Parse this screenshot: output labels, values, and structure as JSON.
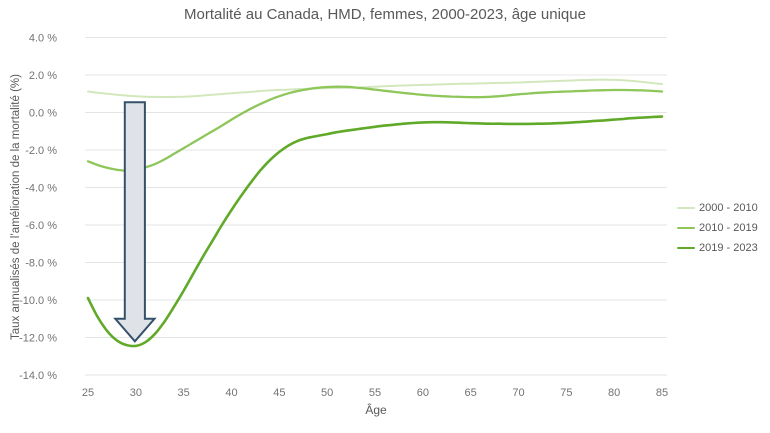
{
  "chart_data": {
    "type": "line",
    "title": "Mortalité au Canada, HMD, femmes, 2000-2023, âge unique",
    "xlabel": "Âge",
    "ylabel": "Taux annualisés de l’amélioration de la mortalité (%)",
    "grid": "horizontal",
    "grid_color": "#e4e4e4",
    "tick_color": "#737373",
    "legend_position": "right",
    "x_axis": {
      "min": 25,
      "max": 85,
      "ticks": [
        25,
        30,
        35,
        40,
        45,
        50,
        55,
        60,
        65,
        70,
        75,
        80,
        85
      ],
      "tick_labels": [
        "25",
        "30",
        "35",
        "40",
        "45",
        "50",
        "55",
        "60",
        "65",
        "70",
        "75",
        "80",
        "85"
      ]
    },
    "y_axis": {
      "min": -14,
      "max": 4,
      "ticks": [
        {
          "value": 4,
          "label": "4.0 %"
        },
        {
          "value": 2,
          "label": "2.0 %"
        },
        {
          "value": 0,
          "label": "0.0 %"
        },
        {
          "value": -2,
          "label": "-2.0 %"
        },
        {
          "value": -4,
          "label": "-4.0 %"
        },
        {
          "value": -6,
          "label": "-6.0 %"
        },
        {
          "value": -8,
          "label": "-8.0 %"
        },
        {
          "value": -10,
          "label": "-10.0 %"
        },
        {
          "value": -12,
          "label": "-12.0 %"
        },
        {
          "value": -14,
          "label": "-14.0 %"
        }
      ]
    },
    "series": [
      {
        "name": "2000 - 2010",
        "color": "#d2e7bc",
        "width": 2,
        "points": [
          [
            25,
            1.12
          ],
          [
            26,
            1.05
          ],
          [
            28,
            0.95
          ],
          [
            30,
            0.87
          ],
          [
            32,
            0.83
          ],
          [
            34,
            0.83
          ],
          [
            36,
            0.87
          ],
          [
            38,
            0.95
          ],
          [
            40,
            1.03
          ],
          [
            42,
            1.1
          ],
          [
            44,
            1.18
          ],
          [
            46,
            1.22
          ],
          [
            48,
            1.27
          ],
          [
            50,
            1.3
          ],
          [
            52,
            1.32
          ],
          [
            54,
            1.35
          ],
          [
            56,
            1.4
          ],
          [
            58,
            1.44
          ],
          [
            60,
            1.47
          ],
          [
            62,
            1.5
          ],
          [
            64,
            1.53
          ],
          [
            66,
            1.55
          ],
          [
            68,
            1.58
          ],
          [
            70,
            1.6
          ],
          [
            72,
            1.64
          ],
          [
            74,
            1.68
          ],
          [
            76,
            1.72
          ],
          [
            78,
            1.75
          ],
          [
            80,
            1.74
          ],
          [
            82,
            1.68
          ],
          [
            84,
            1.57
          ],
          [
            85,
            1.52
          ]
        ]
      },
      {
        "name": "2010 - 2019",
        "color": "#8ec65a",
        "width": 2.3,
        "points": [
          [
            25,
            -2.6
          ],
          [
            26,
            -2.8
          ],
          [
            27,
            -2.95
          ],
          [
            28,
            -3.05
          ],
          [
            29,
            -3.1
          ],
          [
            30,
            -3.05
          ],
          [
            31,
            -2.93
          ],
          [
            32,
            -2.75
          ],
          [
            33,
            -2.5
          ],
          [
            34,
            -2.2
          ],
          [
            35,
            -1.9
          ],
          [
            36,
            -1.6
          ],
          [
            37,
            -1.3
          ],
          [
            38,
            -1.0
          ],
          [
            39,
            -0.7
          ],
          [
            40,
            -0.38
          ],
          [
            41,
            -0.08
          ],
          [
            42,
            0.2
          ],
          [
            43,
            0.45
          ],
          [
            44,
            0.68
          ],
          [
            45,
            0.87
          ],
          [
            46,
            1.03
          ],
          [
            47,
            1.15
          ],
          [
            48,
            1.25
          ],
          [
            49,
            1.32
          ],
          [
            50,
            1.36
          ],
          [
            51,
            1.38
          ],
          [
            52,
            1.37
          ],
          [
            53,
            1.33
          ],
          [
            54,
            1.28
          ],
          [
            55,
            1.22
          ],
          [
            56,
            1.16
          ],
          [
            57,
            1.1
          ],
          [
            58,
            1.04
          ],
          [
            59,
            0.99
          ],
          [
            60,
            0.94
          ],
          [
            61,
            0.9
          ],
          [
            62,
            0.87
          ],
          [
            63,
            0.85
          ],
          [
            64,
            0.83
          ],
          [
            65,
            0.82
          ],
          [
            66,
            0.82
          ],
          [
            67,
            0.84
          ],
          [
            68,
            0.87
          ],
          [
            69,
            0.92
          ],
          [
            70,
            0.97
          ],
          [
            71,
            1.01
          ],
          [
            72,
            1.05
          ],
          [
            73,
            1.08
          ],
          [
            74,
            1.1
          ],
          [
            75,
            1.12
          ],
          [
            76,
            1.14
          ],
          [
            77,
            1.16
          ],
          [
            78,
            1.18
          ],
          [
            79,
            1.19
          ],
          [
            80,
            1.2
          ],
          [
            81,
            1.2
          ],
          [
            82,
            1.19
          ],
          [
            83,
            1.18
          ],
          [
            84,
            1.15
          ],
          [
            85,
            1.12
          ]
        ]
      },
      {
        "name": "2019 - 2023",
        "color": "#60a929",
        "width": 2.6,
        "points": [
          [
            25,
            -9.9
          ],
          [
            26,
            -10.9
          ],
          [
            27,
            -11.65
          ],
          [
            28,
            -12.15
          ],
          [
            29,
            -12.4
          ],
          [
            30,
            -12.45
          ],
          [
            31,
            -12.25
          ],
          [
            32,
            -11.8
          ],
          [
            33,
            -11.15
          ],
          [
            34,
            -10.35
          ],
          [
            35,
            -9.5
          ],
          [
            36,
            -8.6
          ],
          [
            37,
            -7.7
          ],
          [
            38,
            -6.85
          ],
          [
            39,
            -6.0
          ],
          [
            40,
            -5.2
          ],
          [
            41,
            -4.45
          ],
          [
            42,
            -3.75
          ],
          [
            43,
            -3.1
          ],
          [
            44,
            -2.55
          ],
          [
            45,
            -2.1
          ],
          [
            46,
            -1.75
          ],
          [
            47,
            -1.5
          ],
          [
            48,
            -1.35
          ],
          [
            49,
            -1.25
          ],
          [
            50,
            -1.15
          ],
          [
            51,
            -1.05
          ],
          [
            52,
            -0.97
          ],
          [
            53,
            -0.9
          ],
          [
            54,
            -0.83
          ],
          [
            55,
            -0.76
          ],
          [
            56,
            -0.7
          ],
          [
            57,
            -0.65
          ],
          [
            58,
            -0.6
          ],
          [
            59,
            -0.56
          ],
          [
            60,
            -0.53
          ],
          [
            61,
            -0.52
          ],
          [
            62,
            -0.52
          ],
          [
            63,
            -0.53
          ],
          [
            64,
            -0.55
          ],
          [
            65,
            -0.57
          ],
          [
            66,
            -0.58
          ],
          [
            67,
            -0.6
          ],
          [
            68,
            -0.6
          ],
          [
            69,
            -0.61
          ],
          [
            70,
            -0.61
          ],
          [
            71,
            -0.61
          ],
          [
            72,
            -0.6
          ],
          [
            73,
            -0.59
          ],
          [
            74,
            -0.57
          ],
          [
            75,
            -0.55
          ],
          [
            76,
            -0.52
          ],
          [
            77,
            -0.49
          ],
          [
            78,
            -0.45
          ],
          [
            79,
            -0.42
          ],
          [
            80,
            -0.38
          ],
          [
            81,
            -0.34
          ],
          [
            82,
            -0.3
          ],
          [
            83,
            -0.27
          ],
          [
            84,
            -0.24
          ],
          [
            85,
            -0.22
          ]
        ]
      }
    ],
    "annotation": {
      "type": "down-arrow",
      "center_age": 29.9,
      "top_value": 0.55,
      "head_base_value": -11.0,
      "tip_value": -12.2,
      "shaft_half_width_years": 1.05,
      "head_half_width_years": 2.05,
      "fill": "#dfe2e6",
      "stroke": "#34506b",
      "stroke_width": 2
    }
  }
}
